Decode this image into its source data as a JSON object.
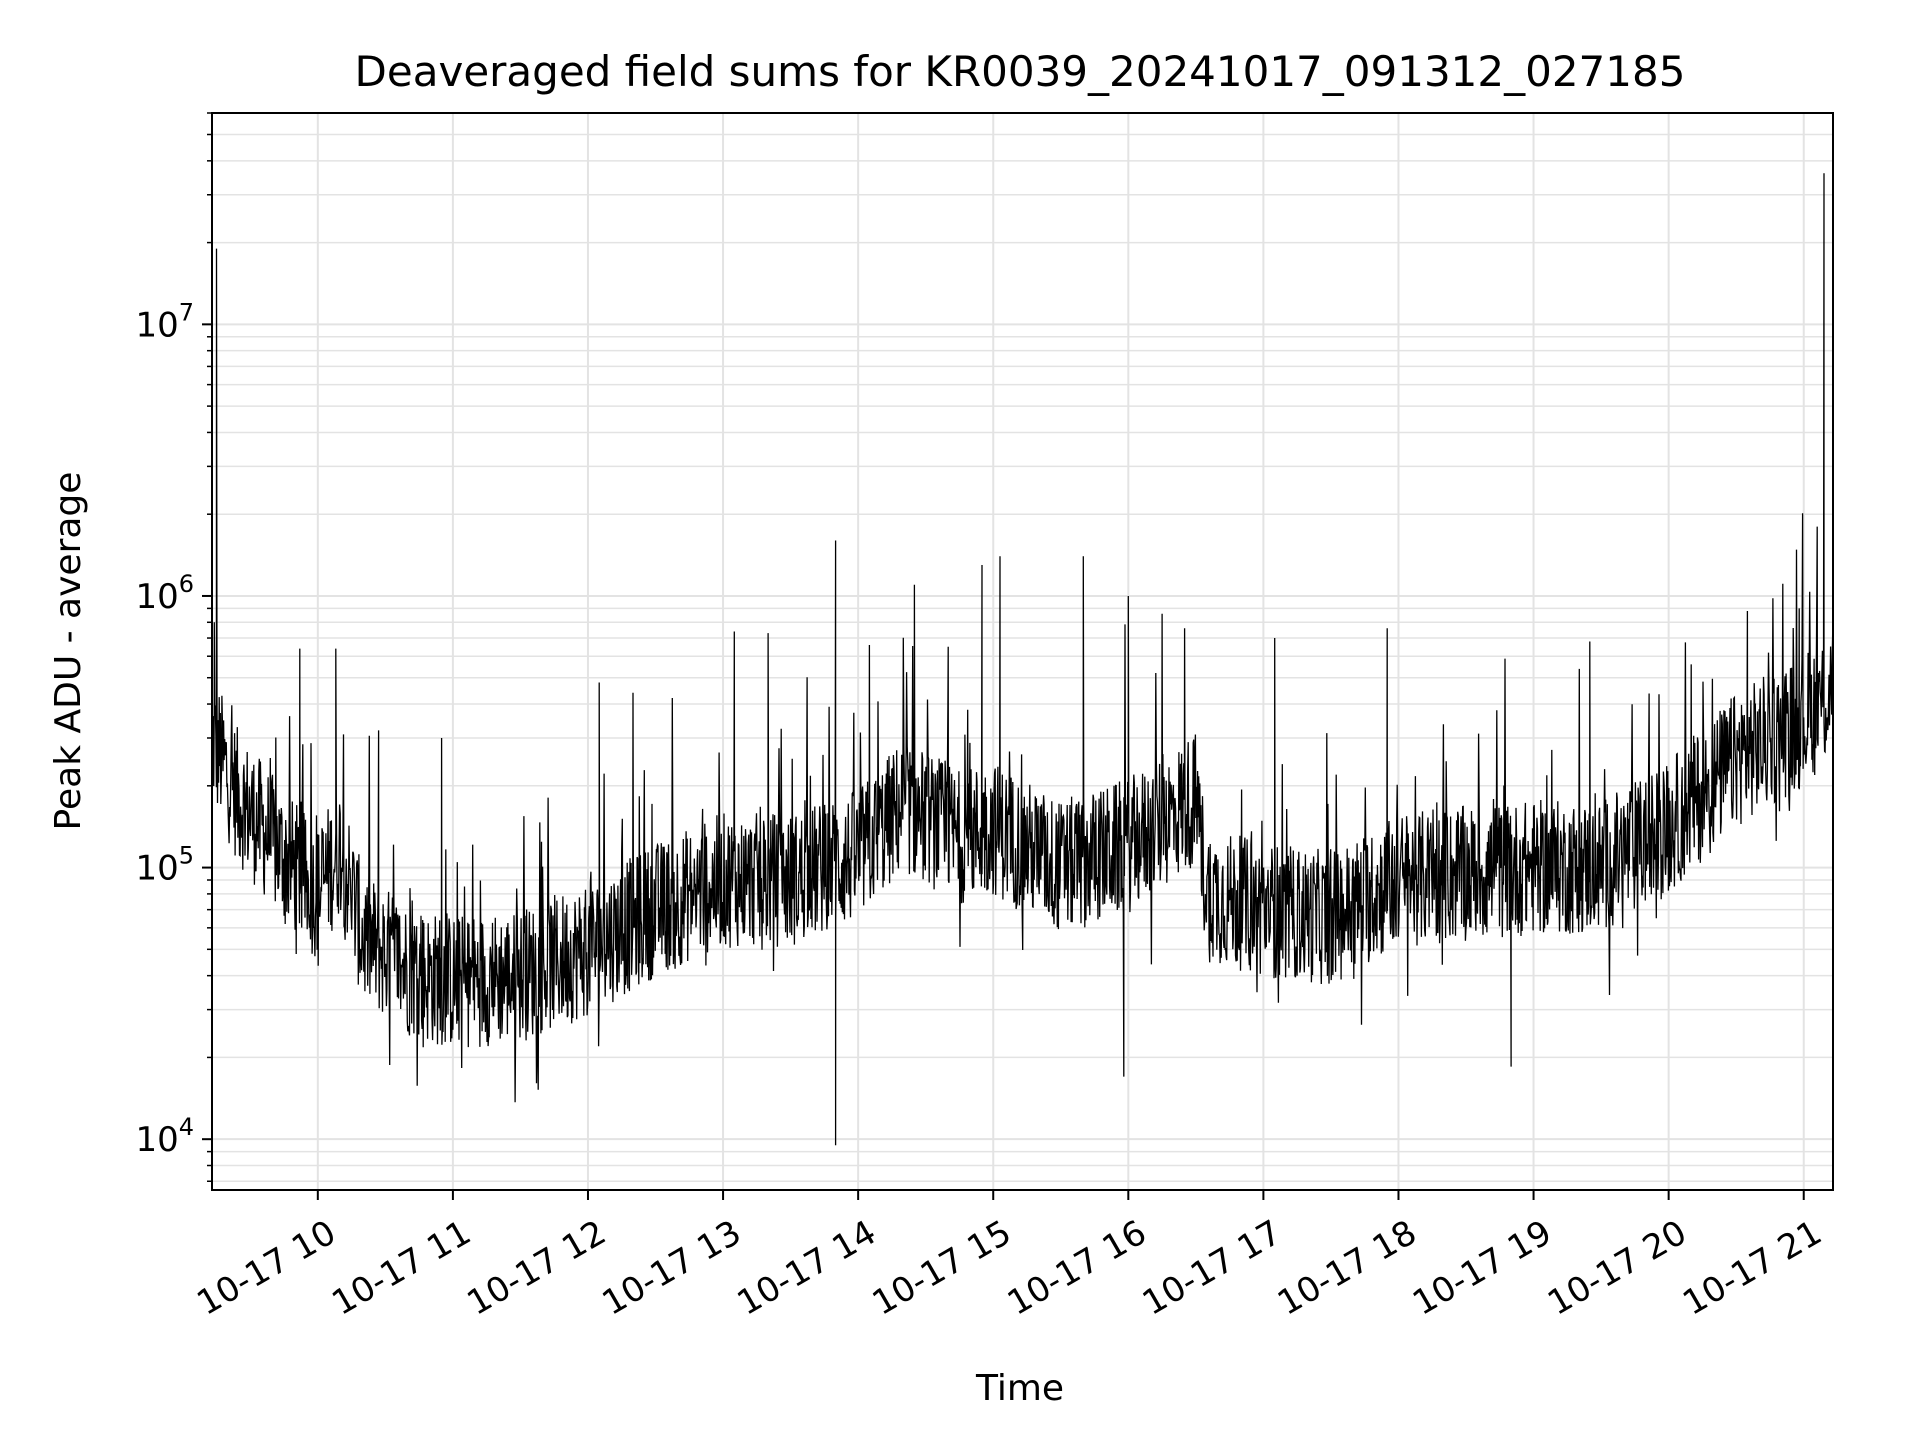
{
  "chart_data": {
    "type": "line",
    "title": "Deaveraged field sums for KR0039_20241017_091312_027185",
    "xlabel": "Time",
    "ylabel": "Peak ADU - average",
    "yscale": "log",
    "ylim": [
      6500,
      60000000
    ],
    "xlim": [
      "2024-10-17 09:13",
      "2024-10-17 21:13"
    ],
    "grid": true,
    "x_ticks": [
      {
        "time": "2024-10-17 10:00",
        "label": "10-17 10"
      },
      {
        "time": "2024-10-17 11:00",
        "label": "10-17 11"
      },
      {
        "time": "2024-10-17 12:00",
        "label": "10-17 12"
      },
      {
        "time": "2024-10-17 13:00",
        "label": "10-17 13"
      },
      {
        "time": "2024-10-17 14:00",
        "label": "10-17 14"
      },
      {
        "time": "2024-10-17 15:00",
        "label": "10-17 15"
      },
      {
        "time": "2024-10-17 16:00",
        "label": "10-17 16"
      },
      {
        "time": "2024-10-17 17:00",
        "label": "10-17 17"
      },
      {
        "time": "2024-10-17 18:00",
        "label": "10-17 18"
      },
      {
        "time": "2024-10-17 19:00",
        "label": "10-17 19"
      },
      {
        "time": "2024-10-17 20:00",
        "label": "10-17 20"
      },
      {
        "time": "2024-10-17 21:00",
        "label": "10-17 21"
      }
    ],
    "y_ticks": [
      {
        "value": 10000,
        "base": "10",
        "exp": "4"
      },
      {
        "value": 100000,
        "base": "10",
        "exp": "5"
      },
      {
        "value": 1000000,
        "base": "10",
        "exp": "6"
      },
      {
        "value": 10000000,
        "base": "10",
        "exp": "7"
      }
    ],
    "series": [
      {
        "color": "#000000",
        "baseline": [
          {
            "t": "2024-10-17 09:13",
            "y": 300000
          },
          {
            "t": "2024-10-17 09:25",
            "y": 180000
          },
          {
            "t": "2024-10-17 09:45",
            "y": 110000
          },
          {
            "t": "2024-10-17 10:00",
            "y": 80000
          },
          {
            "t": "2024-10-17 10:10",
            "y": 120000
          },
          {
            "t": "2024-10-17 10:20",
            "y": 55000
          },
          {
            "t": "2024-10-17 10:45",
            "y": 40000
          },
          {
            "t": "2024-10-17 11:00",
            "y": 38000
          },
          {
            "t": "2024-10-17 11:30",
            "y": 40000
          },
          {
            "t": "2024-10-17 12:00",
            "y": 50000
          },
          {
            "t": "2024-10-17 12:30",
            "y": 70000
          },
          {
            "t": "2024-10-17 13:00",
            "y": 90000
          },
          {
            "t": "2024-10-17 13:30",
            "y": 90000
          },
          {
            "t": "2024-10-17 14:00",
            "y": 110000
          },
          {
            "t": "2024-10-17 14:20",
            "y": 170000
          },
          {
            "t": "2024-10-17 14:45",
            "y": 130000
          },
          {
            "t": "2024-10-17 15:00",
            "y": 140000
          },
          {
            "t": "2024-10-17 15:30",
            "y": 100000
          },
          {
            "t": "2024-10-17 16:00",
            "y": 120000
          },
          {
            "t": "2024-10-17 16:30",
            "y": 180000
          },
          {
            "t": "2024-10-17 16:35",
            "y": 80000
          },
          {
            "t": "2024-10-17 17:00",
            "y": 70000
          },
          {
            "t": "2024-10-17 17:30",
            "y": 65000
          },
          {
            "t": "2024-10-17 18:00",
            "y": 90000
          },
          {
            "t": "2024-10-17 19:00",
            "y": 100000
          },
          {
            "t": "2024-10-17 19:30",
            "y": 100000
          },
          {
            "t": "2024-10-17 20:00",
            "y": 140000
          },
          {
            "t": "2024-10-17 20:30",
            "y": 250000
          },
          {
            "t": "2024-10-17 21:00",
            "y": 350000
          },
          {
            "t": "2024-10-17 21:13",
            "y": 450000
          }
        ],
        "spikes": [
          {
            "t": "2024-10-17 09:15",
            "y": 19000000
          },
          {
            "t": "2024-10-17 09:14",
            "y": 800000
          },
          {
            "t": "2024-10-17 09:52",
            "y": 640000
          },
          {
            "t": "2024-10-17 10:08",
            "y": 640000
          },
          {
            "t": "2024-10-17 10:27",
            "y": 320000
          },
          {
            "t": "2024-10-17 10:55",
            "y": 300000
          },
          {
            "t": "2024-10-17 12:05",
            "y": 480000
          },
          {
            "t": "2024-10-17 12:20",
            "y": 440000
          },
          {
            "t": "2024-10-17 13:05",
            "y": 740000
          },
          {
            "t": "2024-10-17 13:20",
            "y": 730000
          },
          {
            "t": "2024-10-17 13:50",
            "y": 1600000
          },
          {
            "t": "2024-10-17 13:50",
            "y": 9500,
            "dir": "down"
          },
          {
            "t": "2024-10-17 14:05",
            "y": 660000
          },
          {
            "t": "2024-10-17 14:25",
            "y": 1100000
          },
          {
            "t": "2024-10-17 14:40",
            "y": 650000
          },
          {
            "t": "2024-10-17 14:55",
            "y": 1300000
          },
          {
            "t": "2024-10-17 15:03",
            "y": 1400000
          },
          {
            "t": "2024-10-17 15:40",
            "y": 1400000
          },
          {
            "t": "2024-10-17 15:58",
            "y": 17000,
            "dir": "down"
          },
          {
            "t": "2024-10-17 16:00",
            "y": 1000000
          },
          {
            "t": "2024-10-17 16:15",
            "y": 860000
          },
          {
            "t": "2024-10-17 16:25",
            "y": 760000
          },
          {
            "t": "2024-10-17 17:05",
            "y": 700000
          },
          {
            "t": "2024-10-17 17:55",
            "y": 760000
          },
          {
            "t": "2024-10-17 18:50",
            "y": 18500,
            "dir": "down"
          },
          {
            "t": "2024-10-17 19:25",
            "y": 680000
          },
          {
            "t": "2024-10-17 20:10",
            "y": 560000
          },
          {
            "t": "2024-10-17 20:35",
            "y": 880000
          },
          {
            "t": "2024-10-17 20:58",
            "y": 900000
          },
          {
            "t": "2024-10-17 21:06",
            "y": 1800000
          },
          {
            "t": "2024-10-17 21:09",
            "y": 36000000
          }
        ]
      }
    ]
  }
}
